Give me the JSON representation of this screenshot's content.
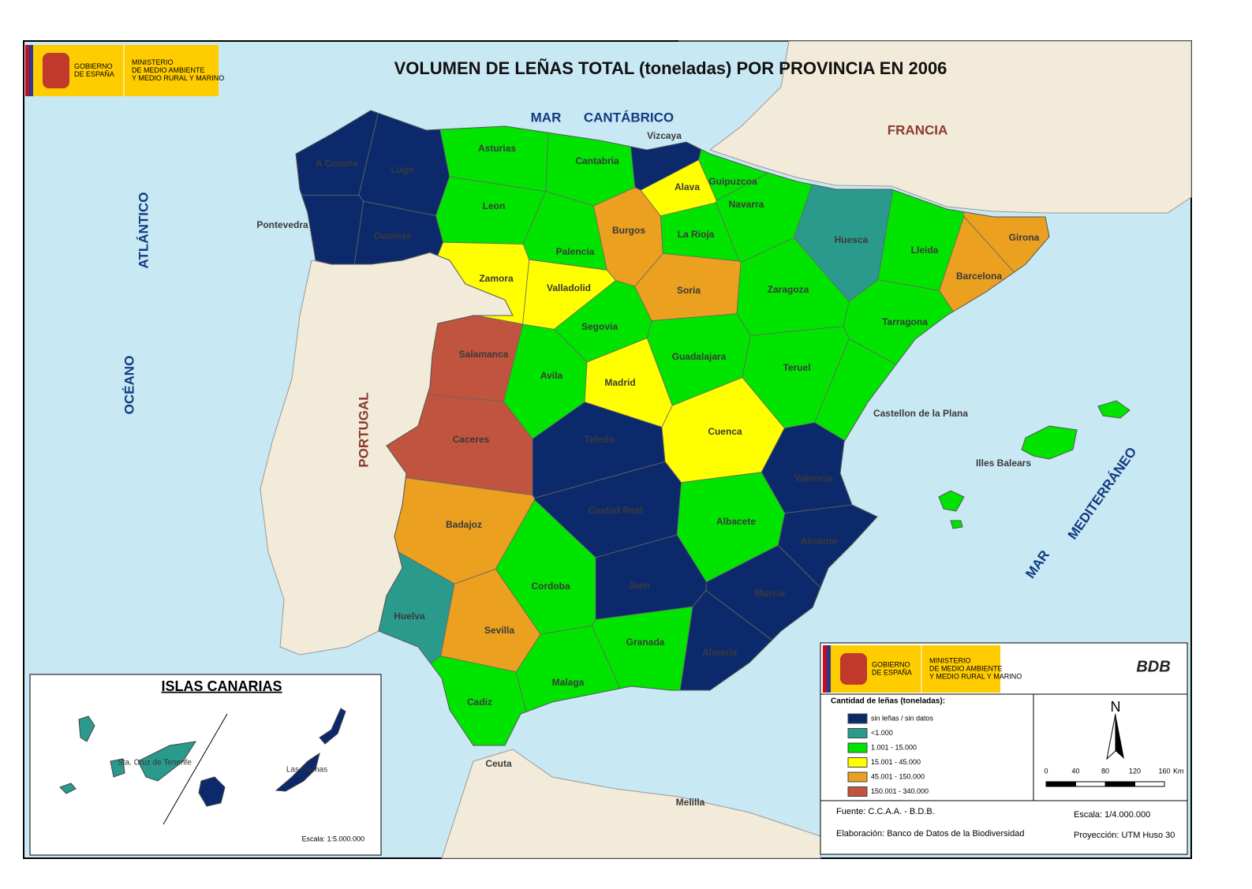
{
  "header": {
    "title": "VOLUMEN DE LEÑAS TOTAL (toneladas) POR PROVINCIA  EN 2006"
  },
  "logo": {
    "government": [
      "GOBIERNO",
      "DE ESPAÑA"
    ],
    "ministry": [
      "MINISTERIO",
      "DE MEDIO AMBIENTE",
      "Y MEDIO RURAL Y MARINO"
    ],
    "bdb": "BDB"
  },
  "places": {
    "sea_north": [
      "MAR",
      "CANTÁBRICO"
    ],
    "france": "FRANCIA",
    "portugal": "PORTUGAL",
    "ocean": [
      "OCÉANO",
      "ATLÁNTICO"
    ],
    "sea_east": [
      "MAR",
      "MEDITERRÁNEO"
    ],
    "ceuta": "Ceuta",
    "melilla": "Melilla"
  },
  "legend": {
    "title": "Cantidad de leñas (toneladas):",
    "items": [
      {
        "label": "sin leñas / sin datos",
        "color": "#0c2a6b"
      },
      {
        "label": "<1.000",
        "color": "#2a9a8c"
      },
      {
        "label": "1.001 - 15.000",
        "color": "#00e400"
      },
      {
        "label": "15.001 - 45.000",
        "color": "#ffff00"
      },
      {
        "label": "45.001 - 150.000",
        "color": "#eba020"
      },
      {
        "label": "150.001 - 340.000",
        "color": "#c1543f"
      }
    ]
  },
  "provinces": [
    {
      "name": "A Coruña",
      "class": 0
    },
    {
      "name": "Lugo",
      "class": 0
    },
    {
      "name": "Pontevedra",
      "class": 0
    },
    {
      "name": "Ourense",
      "class": 0
    },
    {
      "name": "Asturias",
      "class": 2
    },
    {
      "name": "Cantabria",
      "class": 2
    },
    {
      "name": "Vizcaya",
      "class": 0
    },
    {
      "name": "Guipuzcoa",
      "class": 2
    },
    {
      "name": "Alava",
      "class": 3
    },
    {
      "name": "Navarra",
      "class": 2
    },
    {
      "name": "Leon",
      "class": 2
    },
    {
      "name": "Palencia",
      "class": 2
    },
    {
      "name": "Burgos",
      "class": 4
    },
    {
      "name": "La Rioja",
      "class": 2
    },
    {
      "name": "Huesca",
      "class": 1
    },
    {
      "name": "Lleida",
      "class": 2
    },
    {
      "name": "Girona",
      "class": 4
    },
    {
      "name": "Barcelona",
      "class": 4
    },
    {
      "name": "Zamora",
      "class": 3
    },
    {
      "name": "Valladolid",
      "class": 3
    },
    {
      "name": "Soria",
      "class": 4
    },
    {
      "name": "Zaragoza",
      "class": 2
    },
    {
      "name": "Tarragona",
      "class": 2
    },
    {
      "name": "Segovia",
      "class": 2
    },
    {
      "name": "Salamanca",
      "class": 5
    },
    {
      "name": "Avila",
      "class": 2
    },
    {
      "name": "Madrid",
      "class": 3
    },
    {
      "name": "Guadalajara",
      "class": 2
    },
    {
      "name": "Teruel",
      "class": 2
    },
    {
      "name": "Castellon de la Plana",
      "class": 2
    },
    {
      "name": "Caceres",
      "class": 5
    },
    {
      "name": "Toledo",
      "class": 0
    },
    {
      "name": "Cuenca",
      "class": 3
    },
    {
      "name": "Valencia",
      "class": 0
    },
    {
      "name": "Badajoz",
      "class": 4
    },
    {
      "name": "Ciudad Real",
      "class": 0
    },
    {
      "name": "Albacete",
      "class": 2
    },
    {
      "name": "Alicante",
      "class": 0
    },
    {
      "name": "Huelva",
      "class": 1
    },
    {
      "name": "Sevilla",
      "class": 4
    },
    {
      "name": "Cordoba",
      "class": 2
    },
    {
      "name": "Jaen",
      "class": 0
    },
    {
      "name": "Granada",
      "class": 2
    },
    {
      "name": "Almeria",
      "class": 0
    },
    {
      "name": "Murcia",
      "class": 0
    },
    {
      "name": "Cadiz",
      "class": 2
    },
    {
      "name": "Malaga",
      "class": 2
    },
    {
      "name": "Illes Balears",
      "class": 2
    }
  ],
  "canarias": {
    "title": "ISLAS CANARIAS",
    "scale": "Escala: 1:5.000.000",
    "provinces": [
      {
        "name": "Sta. Cruz de Tenerife",
        "class": 1
      },
      {
        "name": "Las Palmas",
        "class": 0
      }
    ]
  },
  "footer": {
    "source": "Fuente: C.C.A.A. - B.D.B.",
    "author": "Elaboración: Banco de Datos de la Biodiversidad",
    "scale": "Escala: 1/4.000.000",
    "projection": "Proyección: UTM  Huso 30"
  },
  "north": "N",
  "scale_bar": {
    "ticks": [
      "0",
      "40",
      "80",
      "120",
      "160"
    ],
    "unit": "Km"
  }
}
